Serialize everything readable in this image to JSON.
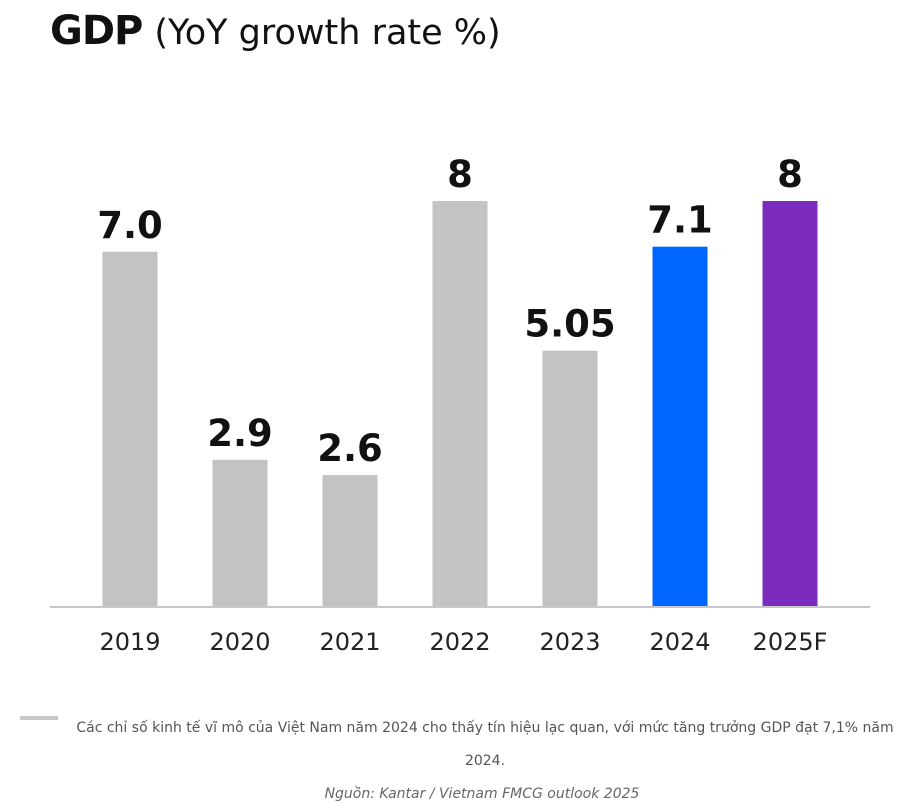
{
  "header": {
    "title_bold": "GDP",
    "title_rest": "(YoY growth rate %)"
  },
  "chart_data": {
    "type": "bar",
    "title": "GDP (YoY growth rate %)",
    "xlabel": "",
    "ylabel": "",
    "categories": [
      "2019",
      "2020",
      "2021",
      "2022",
      "2023",
      "2024",
      "2025F"
    ],
    "values": [
      7.0,
      2.9,
      2.6,
      8,
      5.05,
      7.1,
      8
    ],
    "value_labels": [
      "7.0",
      "2.9",
      "2.6",
      "8",
      "5.05",
      "7.1",
      "8"
    ],
    "bar_colors": [
      "#c3c3c3",
      "#c3c3c3",
      "#c3c3c3",
      "#c3c3c3",
      "#c3c3c3",
      "#0066ff",
      "#7b2cbf"
    ],
    "ylim": [
      0,
      8
    ],
    "grid": false,
    "legend": "none"
  },
  "caption": {
    "text": "Các chỉ số kinh tế vĩ mô của Việt Nam năm 2024 cho thấy tín hiệu lạc quan, với mức tăng trưởng GDP đạt 7,1% năm 2024."
  },
  "source": {
    "text": "Nguồn: Kantar / Vietnam FMCG outlook 2025"
  }
}
